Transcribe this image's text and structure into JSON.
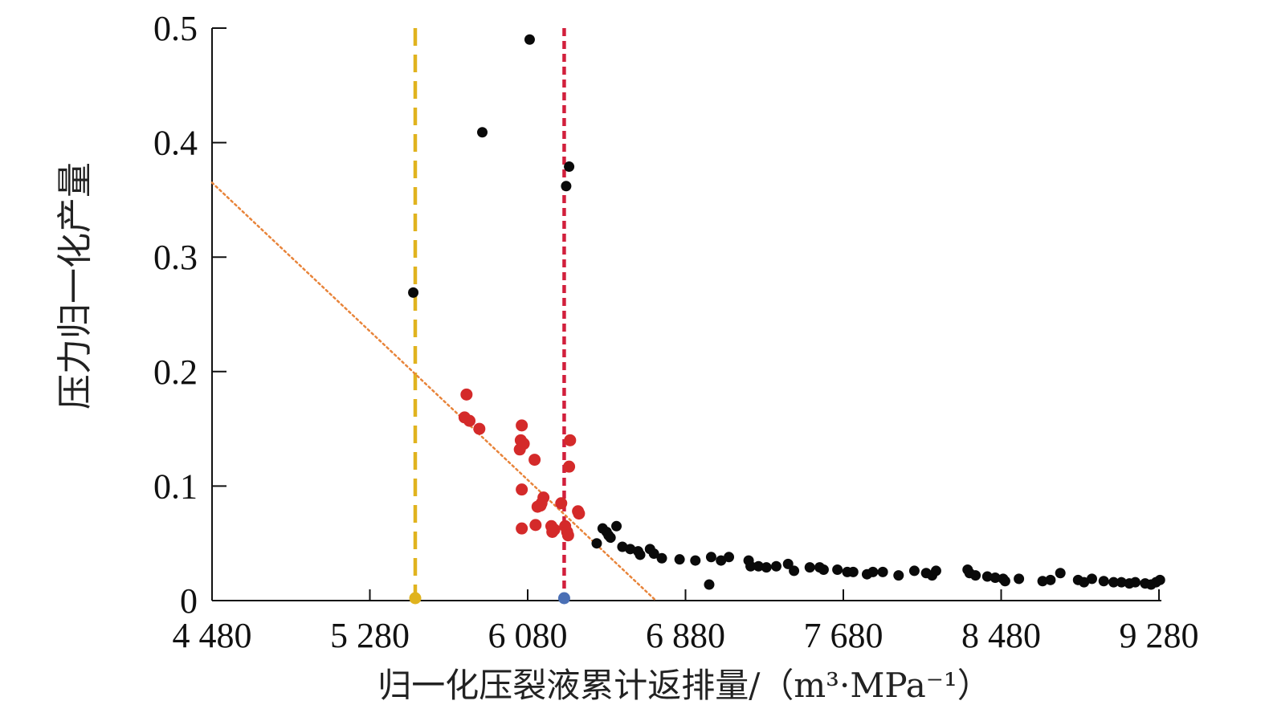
{
  "chart_data": {
    "type": "scatter",
    "title": "",
    "xlabel": "归一化压裂液累计返排量/（m³·MPa⁻¹）",
    "ylabel": "压力归一化产量",
    "xlim": [
      4480,
      9280
    ],
    "ylim": [
      0,
      0.5
    ],
    "x_ticks": [
      4480,
      5280,
      6080,
      6880,
      7680,
      8480,
      9280
    ],
    "x_tick_labels": [
      "4 480",
      "5 280",
      "6 080",
      "6 880",
      "7 680",
      "8 480",
      "9 280"
    ],
    "y_ticks": [
      0,
      0.1,
      0.2,
      0.3,
      0.4,
      0.5
    ],
    "y_tick_labels": [
      "0",
      "0.1",
      "0.2",
      "0.3",
      "0.4",
      "0.5"
    ],
    "grid": false,
    "colors": {
      "black_points": "#0a0a0a",
      "red_points": "#d42a2a",
      "yellow_line": "#e0b31e",
      "red_line": "#d21f3c",
      "blue_marker": "#4a6fb5",
      "trend_line": "#e8843a"
    },
    "vertical_lines": [
      {
        "x": 5510,
        "style": "dashed",
        "color": "#e0b31e",
        "end_marker_color": "#e0b31e"
      },
      {
        "x": 6265,
        "style": "dashed",
        "color": "#d21f3c",
        "end_marker_color": "#4a6fb5"
      }
    ],
    "trend_line": {
      "style": "dotted",
      "x": [
        4480,
        6730
      ],
      "y": [
        0.365,
        0.0
      ]
    },
    "series": [
      {
        "color": "#d42a2a",
        "points": [
          [
            5770,
            0.18
          ],
          [
            5760,
            0.16
          ],
          [
            5785,
            0.157
          ],
          [
            5835,
            0.15
          ],
          [
            6050,
            0.153
          ],
          [
            6045,
            0.14
          ],
          [
            6060,
            0.137
          ],
          [
            6040,
            0.132
          ],
          [
            6115,
            0.123
          ],
          [
            6050,
            0.097
          ],
          [
            6160,
            0.09
          ],
          [
            6150,
            0.085
          ],
          [
            6130,
            0.082
          ],
          [
            6145,
            0.083
          ],
          [
            6050,
            0.063
          ],
          [
            6120,
            0.066
          ],
          [
            6200,
            0.065
          ],
          [
            6215,
            0.062
          ],
          [
            6205,
            0.06
          ],
          [
            6250,
            0.085
          ],
          [
            6270,
            0.065
          ],
          [
            6280,
            0.06
          ],
          [
            6285,
            0.057
          ],
          [
            6295,
            0.14
          ],
          [
            6290,
            0.117
          ],
          [
            6335,
            0.078
          ],
          [
            6340,
            0.076
          ]
        ]
      },
      {
        "color": "#0a0a0a",
        "points": [
          [
            5500,
            0.269
          ],
          [
            5850,
            0.409
          ],
          [
            6090,
            0.49
          ],
          [
            6275,
            0.362
          ],
          [
            6290,
            0.379
          ],
          [
            6430,
            0.05
          ],
          [
            6460,
            0.063
          ],
          [
            6480,
            0.06
          ],
          [
            6490,
            0.057
          ],
          [
            6500,
            0.055
          ],
          [
            6530,
            0.065
          ],
          [
            6560,
            0.047
          ],
          [
            6600,
            0.045
          ],
          [
            6640,
            0.043
          ],
          [
            6650,
            0.04
          ],
          [
            6700,
            0.045
          ],
          [
            6720,
            0.041
          ],
          [
            6760,
            0.037
          ],
          [
            6850,
            0.036
          ],
          [
            6930,
            0.035
          ],
          [
            7000,
            0.014
          ],
          [
            7010,
            0.038
          ],
          [
            7060,
            0.035
          ],
          [
            7100,
            0.038
          ],
          [
            7200,
            0.035
          ],
          [
            7210,
            0.03
          ],
          [
            7250,
            0.03
          ],
          [
            7290,
            0.029
          ],
          [
            7340,
            0.03
          ],
          [
            7400,
            0.032
          ],
          [
            7430,
            0.026
          ],
          [
            7510,
            0.029
          ],
          [
            7560,
            0.029
          ],
          [
            7580,
            0.027
          ],
          [
            7650,
            0.027
          ],
          [
            7700,
            0.025
          ],
          [
            7730,
            0.025
          ],
          [
            7800,
            0.023
          ],
          [
            7830,
            0.025
          ],
          [
            7880,
            0.025
          ],
          [
            7960,
            0.022
          ],
          [
            8040,
            0.026
          ],
          [
            8100,
            0.024
          ],
          [
            8130,
            0.022
          ],
          [
            8150,
            0.026
          ],
          [
            8310,
            0.027
          ],
          [
            8320,
            0.024
          ],
          [
            8350,
            0.022
          ],
          [
            8410,
            0.021
          ],
          [
            8450,
            0.02
          ],
          [
            8490,
            0.019
          ],
          [
            8500,
            0.017
          ],
          [
            8570,
            0.019
          ],
          [
            8690,
            0.017
          ],
          [
            8730,
            0.018
          ],
          [
            8780,
            0.024
          ],
          [
            8870,
            0.018
          ],
          [
            8900,
            0.016
          ],
          [
            8940,
            0.019
          ],
          [
            9000,
            0.017
          ],
          [
            9050,
            0.016
          ],
          [
            9090,
            0.016
          ],
          [
            9130,
            0.015
          ],
          [
            9160,
            0.016
          ],
          [
            9210,
            0.015
          ],
          [
            9240,
            0.014
          ],
          [
            9265,
            0.016
          ],
          [
            9285,
            0.018
          ]
        ]
      }
    ]
  }
}
